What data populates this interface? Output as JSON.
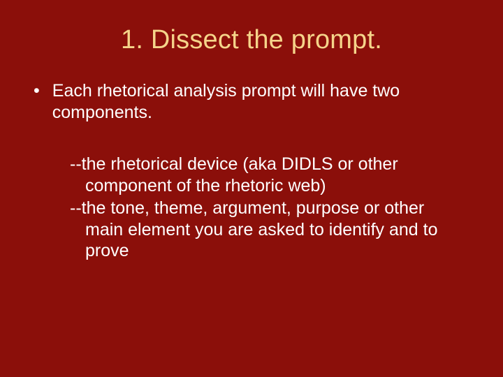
{
  "slide": {
    "background_color": "#8b0f0a",
    "title_color": "#f5d48a",
    "body_text_color": "#ffffff",
    "title_fontsize": 38,
    "body_fontsize": 25,
    "font_family": "Arial",
    "title": "1.  Dissect the prompt.",
    "bullet": {
      "marker": "•",
      "text": "Each rhetorical analysis prompt will have two components."
    },
    "sub_items": [
      "--the rhetorical device (aka DIDLS or other component of the rhetoric web)",
      "--the tone, theme, argument, purpose or other main element you are asked to identify and to prove"
    ]
  }
}
